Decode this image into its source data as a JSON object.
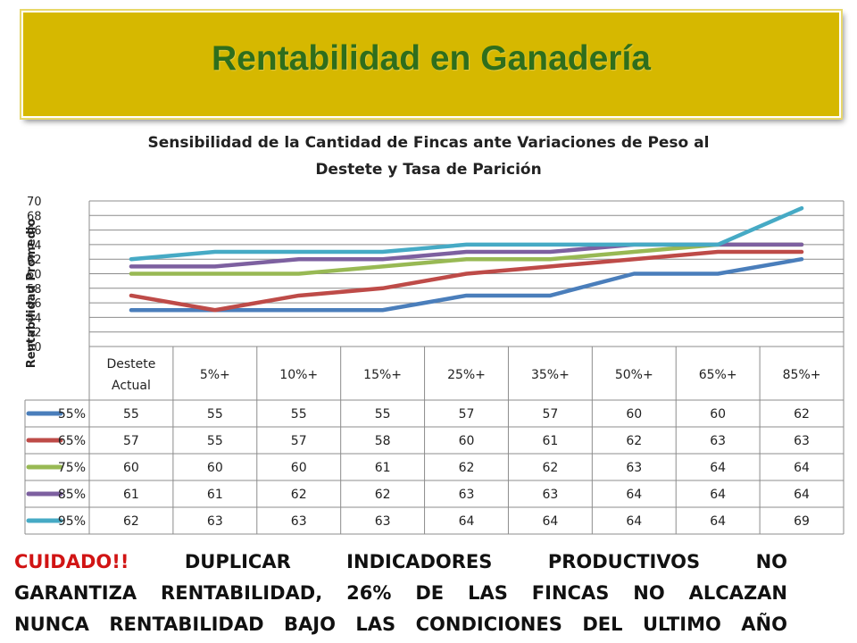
{
  "slide": {
    "title": "Rentabilidad en Ganadería",
    "warning_label": "CUIDADO!!",
    "warning_line1": "DUPLICAR INDICADORES PRODUCTIVOS NO",
    "warning_line2": "GARANTIZA RENTABILIDAD, 26% DE LAS FINCAS NO ALCAZAN",
    "warning_line3": "NUNCA RENTABILIDAD BAJO LAS CONDICIONES DEL ULTIMO AÑO",
    "banner_color": "#d6b800",
    "title_color": "#2f6e1c",
    "warning_color": "#d11414"
  },
  "chart_data": {
    "type": "line",
    "title_line1": "Sensibilidad de la Cantidad de Fincas ante Variaciones de Peso al",
    "title_line2": "Destete y Tasa de Parición",
    "ylabel": "Rentabilidad Promedio",
    "xlabel": "",
    "ylim": [
      50,
      70
    ],
    "yticks": [
      50,
      52,
      54,
      56,
      58,
      60,
      62,
      64,
      66,
      68,
      70
    ],
    "grid": true,
    "legend": "data-table",
    "categories": [
      "Destete Actual",
      "5%+",
      "10%+",
      "15%+",
      "25%+",
      "35%+",
      "50%+",
      "65%+",
      "85%+"
    ],
    "series": [
      {
        "name": "55%",
        "color": "#4a7ebb",
        "values": [
          55,
          55,
          55,
          55,
          57,
          57,
          60,
          60,
          62
        ]
      },
      {
        "name": "65%",
        "color": "#be4b48",
        "values": [
          57,
          55,
          57,
          58,
          60,
          61,
          62,
          63,
          63
        ]
      },
      {
        "name": "75%",
        "color": "#98b954",
        "values": [
          60,
          60,
          60,
          61,
          62,
          62,
          63,
          64,
          64
        ]
      },
      {
        "name": "85%",
        "color": "#7d60a0",
        "values": [
          61,
          61,
          62,
          62,
          63,
          63,
          64,
          64,
          64
        ]
      },
      {
        "name": "95%",
        "color": "#46aac5",
        "values": [
          62,
          63,
          63,
          63,
          64,
          64,
          64,
          64,
          69
        ]
      }
    ]
  }
}
